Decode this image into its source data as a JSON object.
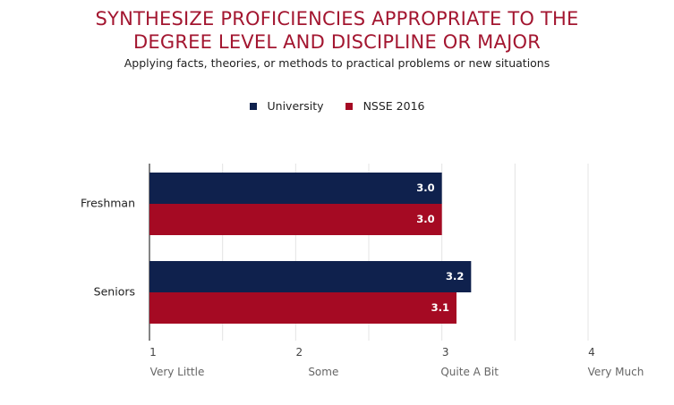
{
  "chart_data": {
    "type": "bar",
    "orientation": "horizontal",
    "title_lines": [
      "SYNTHESIZE PROFICIENCIES APPROPRIATE TO THE",
      "DEGREE LEVEL AND DISCIPLINE OR MAJOR"
    ],
    "subtitle": "Applying facts, theories, or methods to practical problems or new situations",
    "categories": [
      "Freshman",
      "Seniors"
    ],
    "series": [
      {
        "name": "University",
        "color": "#0f214d",
        "values": [
          3.0,
          3.2
        ],
        "labels": [
          "3.0",
          "3.2"
        ]
      },
      {
        "name": "NSSE 2016",
        "color": "#a50a23",
        "values": [
          3.0,
          3.1
        ],
        "labels": [
          "3.0",
          "3.1"
        ]
      }
    ],
    "xlim": [
      1,
      4
    ],
    "x_ticks": [
      1,
      2,
      3,
      4
    ],
    "x_tick_labels": [
      "Very Little",
      "Some",
      "Quite A Bit",
      "Very Much"
    ],
    "grid": true,
    "legend_position": "top-center"
  }
}
